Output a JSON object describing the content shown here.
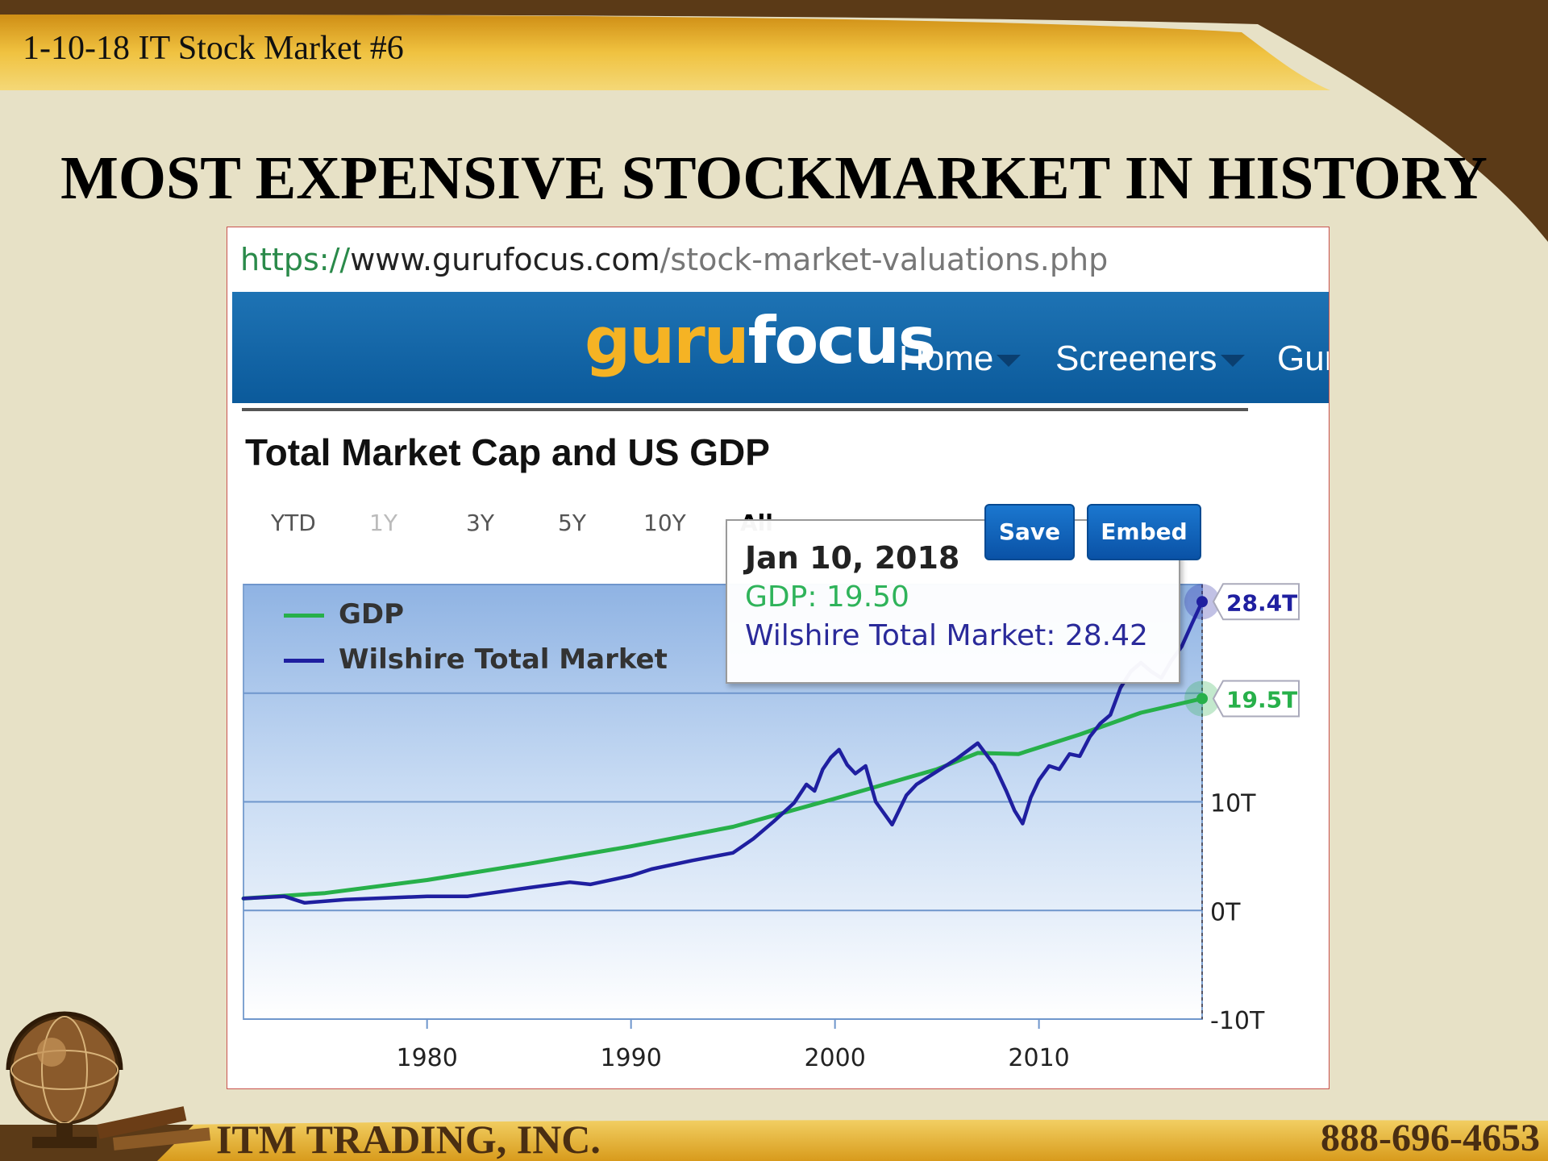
{
  "slide": {
    "header_text": "1-10-18 IT Stock Market #6",
    "title": "MOST EXPENSIVE STOCKMARKET IN HISTORY",
    "footer_company": "ITM TRADING, INC.",
    "footer_phone": "888-696-4653",
    "colors": {
      "background": "#e7e1c6",
      "gold": "#e0a923",
      "brown": "#5b3a17"
    }
  },
  "browser": {
    "url_protocol": "https://",
    "url_host": "www.gurufocus.com",
    "url_path": "/stock-market-valuations.php"
  },
  "site": {
    "logo_part1": "guru",
    "logo_part2": "focus",
    "nav": [
      {
        "label": "Home"
      },
      {
        "label": "Screeners"
      },
      {
        "label": "Gur"
      }
    ]
  },
  "panel": {
    "title": "Total Market Cap and US GDP",
    "ranges": [
      "YTD",
      "1Y",
      "3Y",
      "5Y",
      "10Y",
      "All"
    ],
    "save_label": "Save",
    "embed_label": "Embed"
  },
  "tooltip": {
    "date": "Jan 10, 2018",
    "gdp_line": "GDP: 19.50",
    "wilshire_line": "Wilshire Total Market: 28.42"
  },
  "chart_data": {
    "type": "line",
    "title": "Total Market Cap and US GDP",
    "xlabel": "",
    "ylabel": "",
    "xlim": [
      1971,
      2018
    ],
    "ylim": [
      -10,
      30
    ],
    "x_ticks": [
      "1980",
      "1990",
      "2000",
      "2010"
    ],
    "y_ticks": [
      "-10T",
      "0T",
      "10T"
    ],
    "grid": true,
    "legend_position": "top-left",
    "series": [
      {
        "name": "GDP",
        "color": "#27b04a",
        "end_label": "19.5T",
        "x": [
          1971,
          1975,
          1980,
          1985,
          1990,
          1995,
          2000,
          2005,
          2007,
          2009,
          2010,
          2012,
          2015,
          2018
        ],
        "y": [
          1.1,
          1.6,
          2.8,
          4.3,
          5.9,
          7.7,
          10.3,
          13.0,
          14.5,
          14.4,
          15.0,
          16.2,
          18.2,
          19.5
        ]
      },
      {
        "name": "Wilshire Total Market",
        "color": "#1f1fa0",
        "end_label": "28.4T",
        "x": [
          1971,
          1973,
          1974,
          1976,
          1980,
          1982,
          1985,
          1987,
          1988,
          1990,
          1991,
          1993,
          1995,
          1996,
          1997,
          1998,
          1998.6,
          1999,
          1999.4,
          1999.8,
          2000.2,
          2000.6,
          2001,
          2001.5,
          2002,
          2002.8,
          2003.5,
          2004,
          2005,
          2006,
          2007,
          2007.8,
          2008.4,
          2008.8,
          2009.2,
          2009.6,
          2010,
          2010.5,
          2011,
          2011.5,
          2012,
          2012.5,
          2013,
          2013.5,
          2014,
          2014.5,
          2015,
          2015.5,
          2016,
          2016.5,
          2017,
          2017.5,
          2018
        ],
        "y": [
          1.1,
          1.3,
          0.7,
          1.0,
          1.3,
          1.3,
          2.1,
          2.6,
          2.4,
          3.2,
          3.8,
          4.6,
          5.3,
          6.6,
          8.2,
          9.9,
          11.6,
          11.0,
          13.0,
          14.1,
          14.8,
          13.4,
          12.6,
          13.3,
          10.0,
          7.9,
          10.6,
          11.6,
          12.8,
          14.0,
          15.4,
          13.4,
          11.0,
          9.2,
          8.0,
          10.4,
          12.0,
          13.3,
          13.0,
          14.4,
          14.2,
          16.0,
          17.2,
          18.0,
          20.5,
          22.0,
          22.8,
          22.0,
          21.4,
          23.0,
          24.3,
          26.4,
          28.42
        ]
      }
    ]
  }
}
